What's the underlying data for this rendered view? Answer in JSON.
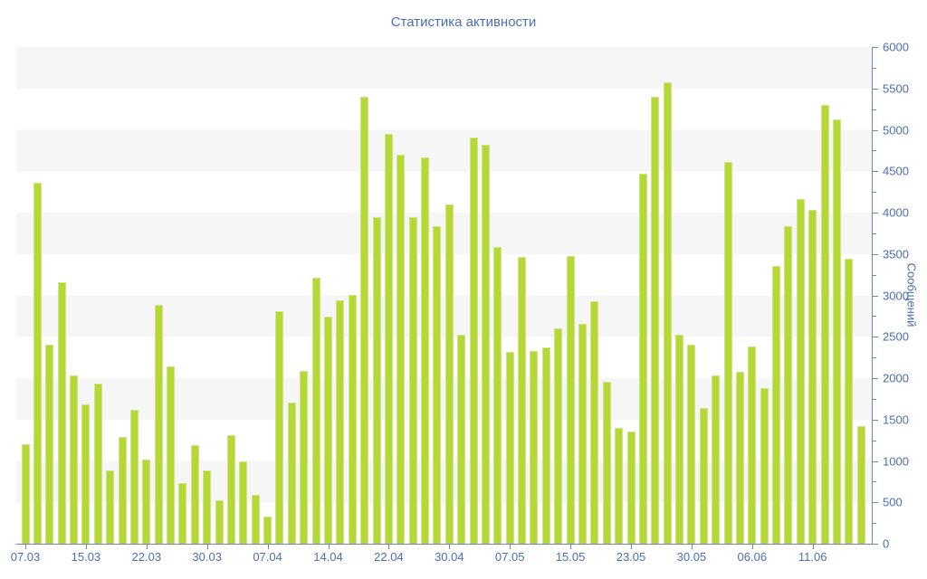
{
  "title": "Статистика активности",
  "chart_data": {
    "type": "bar",
    "title": "Статистика активности",
    "xlabel": "",
    "ylabel": "Сообщений",
    "ylim": [
      0,
      6000
    ],
    "y_tick_step": 500,
    "y_minor_tick_step": 250,
    "grid": "alternating-horizontal-bands",
    "legend_position": "none",
    "x_tick_labels": [
      "07.03",
      "15.03",
      "22.03",
      "30.03",
      "07.04",
      "14.04",
      "22.04",
      "30.04",
      "07.05",
      "15.05",
      "23.05",
      "30.05",
      "06.06",
      "11.06"
    ],
    "x_tick_every": 5,
    "values": [
      1200,
      4360,
      2400,
      3160,
      2030,
      1680,
      1940,
      890,
      1290,
      1620,
      1020,
      2890,
      2140,
      730,
      1190,
      880,
      520,
      1310,
      990,
      590,
      330,
      2810,
      1700,
      2090,
      3210,
      2740,
      2940,
      3010,
      5400,
      3950,
      4950,
      4700,
      3950,
      4670,
      3840,
      4100,
      2520,
      4910,
      4820,
      3590,
      2320,
      3460,
      2330,
      2370,
      2600,
      3480,
      2660,
      2930,
      1960,
      1400,
      1350,
      4470,
      5400,
      5570,
      2530,
      2400,
      1640,
      2030,
      4610,
      2080,
      2380,
      1880,
      3350,
      3840,
      4160,
      4030,
      5300,
      5130,
      3440,
      1420
    ],
    "colors": {
      "bar": "#b4d936",
      "bar_edge": "#cfe482",
      "band": "#f6f6f6",
      "axis": "#6f87b8",
      "label": "#4a6fb0",
      "title": "#4a6fb0",
      "background": "#ffffff"
    }
  }
}
